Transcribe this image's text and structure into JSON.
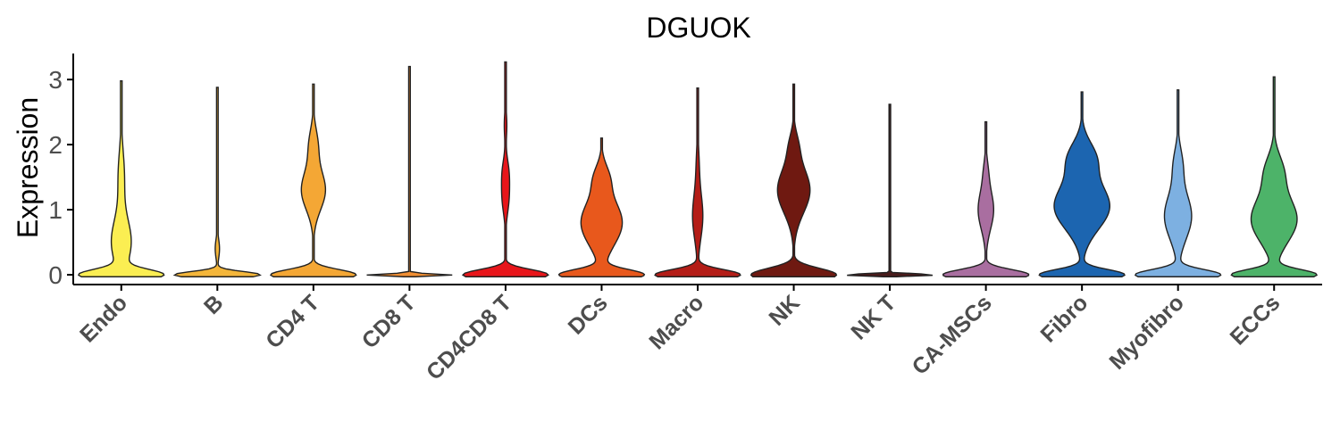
{
  "chart_data": {
    "type": "violin",
    "title": "DGUOK",
    "xlabel": "",
    "ylabel": "Expression",
    "ylim": [
      -0.15,
      3.4
    ],
    "yticks": [
      0,
      1,
      2,
      3
    ],
    "grid": false,
    "legend": "none",
    "categories": [
      "Endo",
      "B",
      "CD4 T",
      "CD8 T",
      "CD4CD8 T",
      "DCs",
      "Macro",
      "NK",
      "NK T",
      "CA-MSCs",
      "Fibro",
      "Myofibro",
      "ECCs"
    ],
    "series": [
      {
        "category": "Endo",
        "color": "#fbee52",
        "max": 2.98,
        "modes": [
          [
            0,
            1.0,
            0.08
          ],
          [
            0.5,
            0.25,
            0.35
          ],
          [
            1.5,
            0.08,
            0.4
          ]
        ]
      },
      {
        "category": "B",
        "color": "#f4b63a",
        "max": 2.88,
        "modes": [
          [
            0,
            1.0,
            0.05
          ],
          [
            0.4,
            0.05,
            0.15
          ]
        ]
      },
      {
        "category": "CD4 T",
        "color": "#f4a735",
        "max": 2.93,
        "modes": [
          [
            0,
            1.0,
            0.08
          ],
          [
            1.3,
            0.28,
            0.3
          ],
          [
            2.0,
            0.1,
            0.25
          ]
        ]
      },
      {
        "category": "CD8 T",
        "color": "#f08e33",
        "max": 3.2,
        "modes": [
          [
            0,
            1.0,
            0.015
          ]
        ]
      },
      {
        "category": "CD4CD8 T",
        "color": "#e8151a",
        "max": 3.27,
        "modes": [
          [
            0,
            1.0,
            0.08
          ],
          [
            1.2,
            0.08,
            0.25
          ],
          [
            1.6,
            0.06,
            0.2
          ],
          [
            2.3,
            0.03,
            0.2
          ]
        ]
      },
      {
        "category": "DCs",
        "color": "#e8581c",
        "max": 2.1,
        "modes": [
          [
            0,
            1.0,
            0.08
          ],
          [
            0.8,
            0.5,
            0.35
          ],
          [
            1.5,
            0.15,
            0.2
          ]
        ]
      },
      {
        "category": "Macro",
        "color": "#b41d17",
        "max": 2.87,
        "modes": [
          [
            0,
            1.0,
            0.08
          ],
          [
            0.9,
            0.12,
            0.35
          ],
          [
            1.7,
            0.03,
            0.3
          ]
        ]
      },
      {
        "category": "NK",
        "color": "#6f1911",
        "max": 2.93,
        "modes": [
          [
            0,
            1.0,
            0.1
          ],
          [
            1.3,
            0.38,
            0.35
          ],
          [
            2.0,
            0.08,
            0.2
          ]
        ]
      },
      {
        "category": "NK T",
        "color": "#4a1b1b",
        "max": 2.62,
        "modes": [
          [
            0,
            1.0,
            0.015
          ]
        ]
      },
      {
        "category": "CA-MSCs",
        "color": "#a96ea0",
        "max": 2.35,
        "modes": [
          [
            0,
            1.0,
            0.08
          ],
          [
            1.0,
            0.18,
            0.3
          ],
          [
            1.6,
            0.04,
            0.2
          ]
        ]
      },
      {
        "category": "Fibro",
        "color": "#1c65b0",
        "max": 2.81,
        "modes": [
          [
            0,
            1.0,
            0.08
          ],
          [
            1.05,
            0.65,
            0.35
          ],
          [
            1.8,
            0.3,
            0.25
          ]
        ]
      },
      {
        "category": "Myofibro",
        "color": "#7db0e1",
        "max": 2.84,
        "modes": [
          [
            0,
            1.0,
            0.08
          ],
          [
            0.9,
            0.32,
            0.35
          ],
          [
            1.7,
            0.1,
            0.25
          ]
        ]
      },
      {
        "category": "ECCs",
        "color": "#4db369",
        "max": 3.04,
        "modes": [
          [
            0,
            1.0,
            0.08
          ],
          [
            0.85,
            0.55,
            0.35
          ],
          [
            1.6,
            0.2,
            0.25
          ]
        ]
      }
    ]
  }
}
